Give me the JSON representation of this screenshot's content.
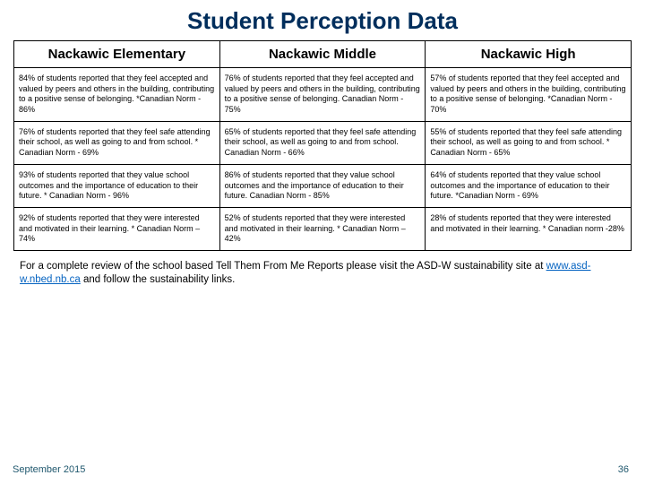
{
  "title": "Student Perception Data",
  "columns": [
    "Nackawic Elementary",
    "Nackawic Middle",
    "Nackawic High"
  ],
  "rows": [
    [
      "84% of students reported that they feel accepted and valued by peers and others in the building, contributing to a positive sense of belonging.\n*Canadian Norm - 86%",
      "76% of students reported that they feel accepted and valued by peers and others in the building, contributing to a positive sense of belonging.\nCanadian Norm - 75%",
      "57% of students reported that they feel accepted and valued by peers and others in the building, contributing to a positive sense of belonging.\n*Canadian Norm - 70%"
    ],
    [
      "76% of students reported that they feel safe attending their school, as well as going to and from school.\n* Canadian Norm - 69%",
      "65% of students reported that they feel safe attending their school, as well as going to and from school.\nCanadian Norm - 66%",
      "55% of students reported that they feel safe attending their school, as well as going to and from school.\n* Canadian Norm - 65%"
    ],
    [
      "93% of students reported that they value school outcomes and the importance of education to their future.\n* Canadian Norm - 96%",
      "86% of students reported that they value school outcomes and the importance of education to their future.\nCanadian Norm - 85%",
      "64% of students reported that they value school outcomes and the importance of education to their future.\n*Canadian Norm - 69%"
    ],
    [
      "92% of students reported that they were interested and motivated in their learning.\n* Canadian Norm – 74%",
      "52% of students reported that they were interested and motivated in their learning.\n* Canadian Norm – 42%",
      "28% of students reported that they were interested and motivated in their learning.\n* Canadian norm -28%"
    ]
  ],
  "footnote_pre": "For a complete review of the school based Tell Them From Me Reports please visit the ASD-W sustainability site at ",
  "footnote_link": "www.asd-w.nbed.nb.ca",
  "footnote_post": " and follow the sustainability links.",
  "date": "September 2015",
  "pagenum": "36"
}
